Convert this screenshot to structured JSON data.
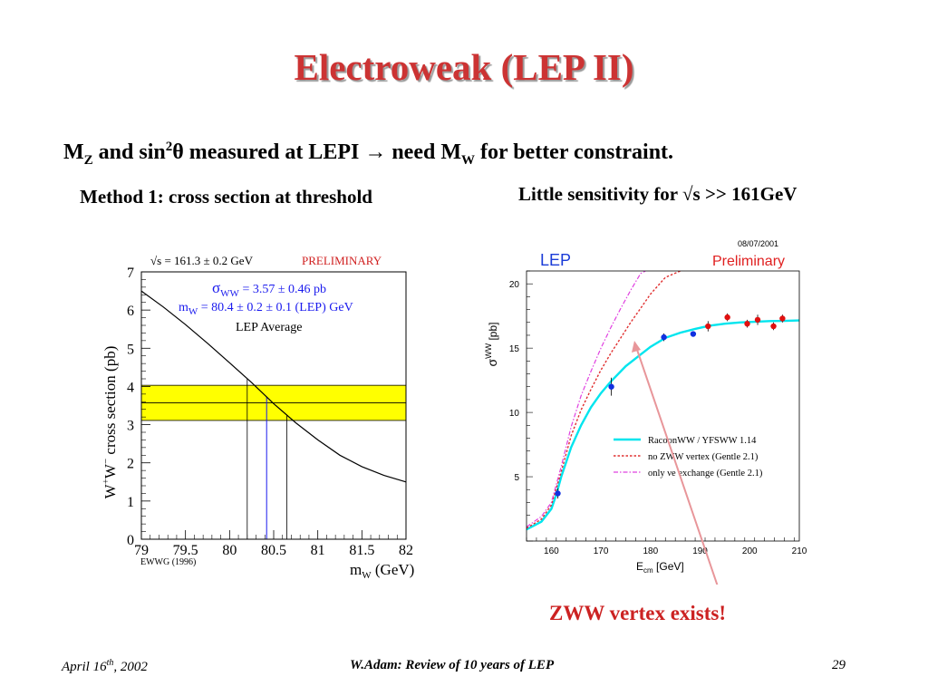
{
  "slide": {
    "title": "Electroweak (LEP II)",
    "subtitle": {
      "p1": "M",
      "s1": "Z",
      "p2": " and sin",
      "s2": "2",
      "p3": "θ measured at LEPI → need M",
      "s3": "W",
      "p4": " for better constraint."
    },
    "method1": "Method 1: cross section at threshold",
    "sensitivity": "Little sensitivity for √s >> 161GeV",
    "annotation": "ZWW vertex exists!",
    "footer": {
      "date_main": "April 16",
      "date_sup": "th",
      "date_rest": ", 2002",
      "center": "W.Adam: Review of 10 years of LEP",
      "page": "29"
    }
  },
  "chart_data": [
    {
      "type": "line",
      "header": "√s = 161.3 ± 0.2 GeV",
      "preliminary": "PRELIMINARY",
      "sigma_label": "σ",
      "sigma_sub": "WW",
      "sigma_value": " = 3.57 ± 0.46 pb",
      "mw_label": "m",
      "mw_sub": "W",
      "mw_value": " = 80.4 ± 0.2 ± 0.1 (LEP) GeV",
      "average_label": "LEP Average",
      "ylabel_main": "W",
      "ylabel_sup1": "+",
      "ylabel_mid": "W",
      "ylabel_sup2": "−",
      "ylabel_rest": " cross section (pb)",
      "xlabel_main": "m",
      "xlabel_sub": "W",
      "xlabel_rest": " (GeV)",
      "source": "EWWG (1996)",
      "xlim": [
        79,
        82
      ],
      "ylim": [
        0,
        7
      ],
      "x_ticks": [
        "79",
        "79.5",
        "80",
        "80.5",
        "81",
        "81.5",
        "82"
      ],
      "y_ticks": [
        "0",
        "1",
        "2",
        "3",
        "4",
        "5",
        "6",
        "7"
      ],
      "curve": {
        "x": [
          79,
          79.25,
          79.5,
          79.75,
          80,
          80.25,
          80.5,
          80.75,
          81,
          81.25,
          81.5,
          81.75,
          82
        ],
        "y": [
          6.5,
          6.08,
          5.62,
          5.13,
          4.62,
          4.1,
          3.55,
          3.05,
          2.6,
          2.2,
          1.9,
          1.67,
          1.5
        ]
      },
      "band": {
        "center": 3.57,
        "low": 3.11,
        "high": 4.03,
        "color": "#ffff00"
      },
      "mw_lines": {
        "low": 80.2,
        "central": 80.42,
        "high": 80.65
      }
    },
    {
      "type": "line",
      "lep_label": "LEP",
      "preliminary": "Preliminary",
      "date": "08/07/2001",
      "ylabel_main": "σ",
      "ylabel_sup": "WW",
      "ylabel_unit": " [pb]",
      "xlabel_main": "E",
      "xlabel_sub": "cm",
      "xlabel_unit": " [GeV]",
      "xlim": [
        155,
        210
      ],
      "ylim": [
        0,
        21
      ],
      "x_ticks": [
        "160",
        "170",
        "180",
        "190",
        "200",
        "210"
      ],
      "y_ticks": [
        "5",
        "10",
        "15",
        "20"
      ],
      "series": [
        {
          "name": "RacoonWW / YFSWW 1.14",
          "color": "#00e5ee",
          "x": [
            155,
            158,
            160,
            161,
            162,
            164,
            166,
            168,
            170,
            172,
            175,
            178,
            180,
            183,
            186,
            189,
            192,
            195,
            198,
            201,
            204,
            207,
            210
          ],
          "y": [
            0.9,
            1.5,
            2.5,
            3.6,
            5.0,
            7.3,
            9.0,
            10.4,
            11.5,
            12.4,
            13.6,
            14.5,
            15.1,
            15.8,
            16.2,
            16.5,
            16.75,
            16.9,
            17.0,
            17.05,
            17.1,
            17.12,
            17.15
          ]
        },
        {
          "name": "no ZWW vertex (Gentle 2.1)",
          "color": "#e03030",
          "x": [
            155,
            158,
            160,
            162,
            164,
            166,
            168,
            170,
            172,
            174,
            176,
            178,
            180,
            183,
            186
          ],
          "y": [
            1.0,
            1.7,
            2.8,
            5.4,
            8.2,
            10.2,
            11.8,
            13.3,
            14.6,
            15.8,
            17.0,
            18.1,
            19.2,
            20.5,
            21.0
          ]
        },
        {
          "name": "only νe exchange (Gentle 2.1)",
          "color": "#e040e0",
          "x": [
            155,
            158,
            160,
            162,
            164,
            166,
            168,
            170,
            172,
            174,
            176,
            178,
            179
          ],
          "y": [
            1.1,
            1.9,
            3.0,
            5.8,
            8.9,
            11.3,
            13.2,
            15.0,
            16.6,
            18.1,
            19.5,
            20.8,
            21.0
          ]
        }
      ],
      "measurements": [
        {
          "x": 161.3,
          "y": 3.7,
          "err": 0.4,
          "color": "#1030e0"
        },
        {
          "x": 172.1,
          "y": 12.0,
          "err": 0.7,
          "color": "#1030e0"
        },
        {
          "x": 182.7,
          "y": 15.85,
          "err": 0.3,
          "color": "#1030e0"
        },
        {
          "x": 188.6,
          "y": 16.1,
          "err": 0.2,
          "color": "#1030e0"
        },
        {
          "x": 191.6,
          "y": 16.7,
          "err": 0.4,
          "color": "#e01010"
        },
        {
          "x": 195.5,
          "y": 17.4,
          "err": 0.3,
          "color": "#e01010"
        },
        {
          "x": 199.5,
          "y": 16.9,
          "err": 0.3,
          "color": "#e01010"
        },
        {
          "x": 201.6,
          "y": 17.2,
          "err": 0.4,
          "color": "#e01010"
        },
        {
          "x": 204.8,
          "y": 16.7,
          "err": 0.3,
          "color": "#e01010"
        },
        {
          "x": 206.6,
          "y": 17.3,
          "err": 0.3,
          "color": "#e01010"
        }
      ]
    }
  ]
}
